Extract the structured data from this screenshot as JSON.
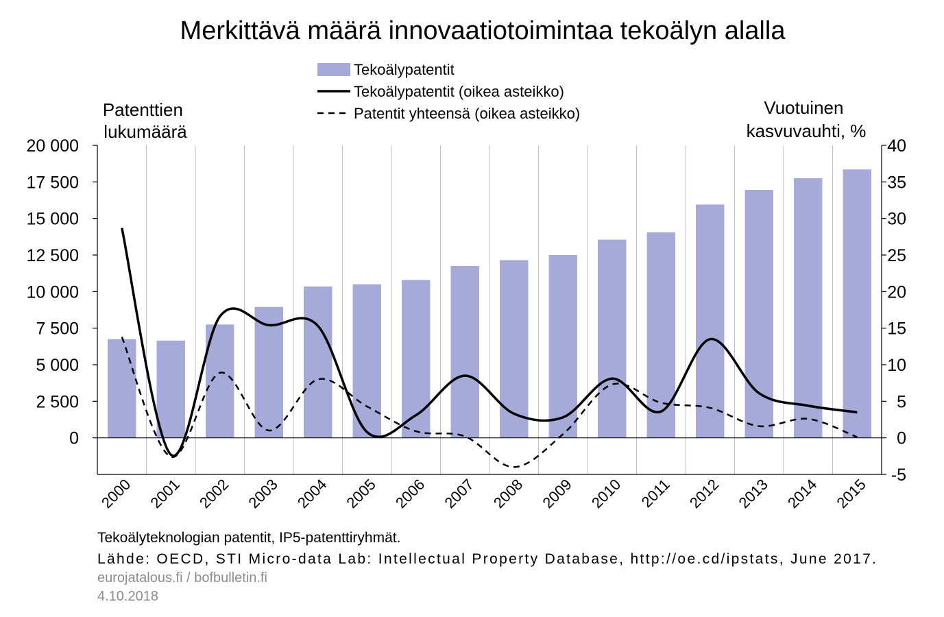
{
  "chart_data": {
    "type": "bar",
    "title": "Merkittävä määrä innovaatiotoimintaa tekoälyn alalla",
    "left_axis_label": [
      "Patenttien",
      "lukumäärä"
    ],
    "right_axis_label": [
      "Vuotuinen",
      "kasvuvauhti, %"
    ],
    "categories": [
      "2000",
      "2001",
      "2002",
      "2003",
      "2004",
      "2005",
      "2006",
      "2007",
      "2008",
      "2009",
      "2010",
      "2011",
      "2012",
      "2013",
      "2014",
      "2015"
    ],
    "left_ylim": [
      -2500,
      20000
    ],
    "left_ticks": [
      0,
      2500,
      5000,
      7500,
      10000,
      12500,
      15000,
      17500,
      20000
    ],
    "left_tick_labels": [
      "0",
      "2 500",
      "5 000",
      "7 500",
      "10 000",
      "12 500",
      "15 000",
      "17 500",
      "20 000"
    ],
    "right_ylim": [
      -5,
      40
    ],
    "right_ticks": [
      -5,
      0,
      5,
      10,
      15,
      20,
      25,
      30,
      35,
      40
    ],
    "right_tick_labels": [
      "-5",
      "0",
      "5",
      "10",
      "15",
      "20",
      "25",
      "30",
      "35",
      "40"
    ],
    "grid": "vertical",
    "legend_position": "top-center",
    "series": [
      {
        "name": "Tekoälypatentit",
        "kind": "bar",
        "axis": "left",
        "color": "#a5aad8",
        "values": [
          6750,
          6650,
          7750,
          8950,
          10350,
          10500,
          10800,
          11750,
          12150,
          12500,
          13550,
          14050,
          15950,
          16950,
          17750,
          18350
        ]
      },
      {
        "name": "Tekoälypatentit (oikea asteikko)",
        "kind": "line",
        "axis": "right",
        "style": "solid",
        "color": "#000000",
        "values": [
          28.7,
          -2.3,
          16.6,
          15.4,
          15.3,
          0.8,
          3.1,
          8.5,
          3.3,
          2.8,
          8.1,
          3.6,
          13.5,
          6.1,
          4.4,
          3.5
        ]
      },
      {
        "name": "Patentit yhteensä (oikea asteikko)",
        "kind": "line",
        "axis": "right",
        "style": "dashed",
        "color": "#000000",
        "values": [
          13.8,
          -2.6,
          8.9,
          1.0,
          8.0,
          4.3,
          0.9,
          0.2,
          -4.0,
          0.5,
          7.3,
          4.8,
          4.1,
          1.6,
          2.6,
          0.1
        ]
      }
    ],
    "notes": [
      "Tekoälyteknologian patentit, IP5-patenttiryhmät.",
      "Lähde: OECD, STI Micro-data Lab: Intellectual Property Database, http://oe.cd/ipstats, June 2017."
    ],
    "footer": [
      "eurojatalous.fi / bofbulletin.fi",
      "4.10.2018"
    ]
  }
}
